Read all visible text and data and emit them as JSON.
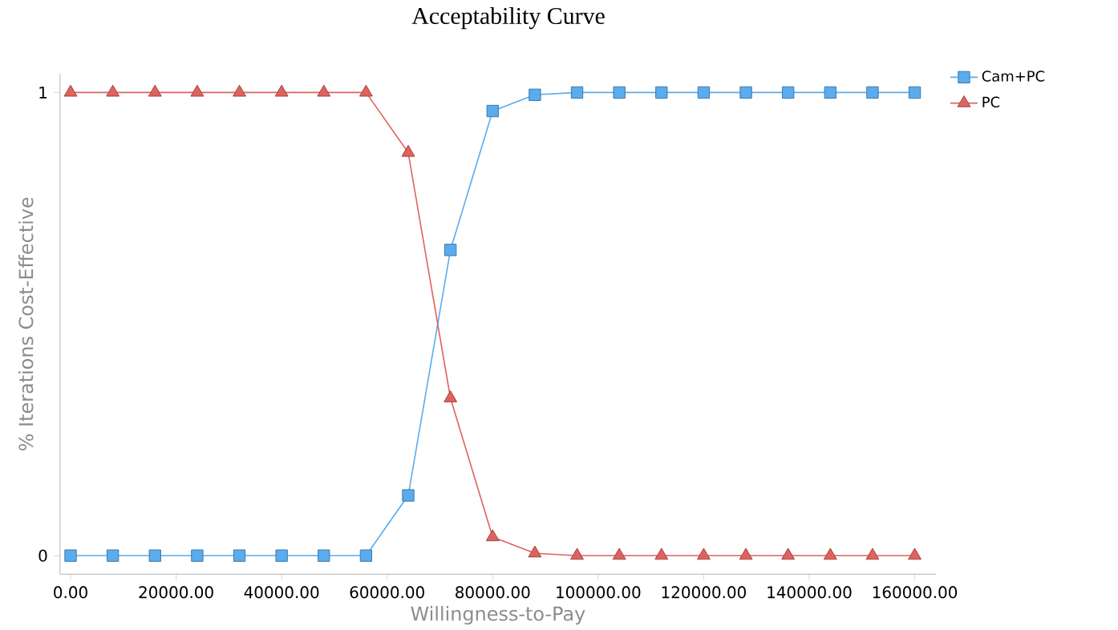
{
  "chart_data": {
    "type": "line",
    "title": "Acceptability Curve",
    "xlabel": "Willingness-to-Pay",
    "ylabel": "% Iterations Cost-Effective",
    "x": [
      0,
      8000,
      16000,
      24000,
      32000,
      40000,
      48000,
      56000,
      64000,
      72000,
      80000,
      88000,
      96000,
      104000,
      112000,
      120000,
      128000,
      136000,
      144000,
      152000,
      160000
    ],
    "series": [
      {
        "name": "Cam+PC",
        "color": "#5aacee",
        "marker": "square",
        "values": [
          0,
          0,
          0,
          0,
          0,
          0,
          0,
          0,
          0.13,
          0.66,
          0.96,
          0.995,
          1,
          1,
          1,
          1,
          1,
          1,
          1,
          1,
          1
        ]
      },
      {
        "name": "PC",
        "color": "#e0625c",
        "marker": "triangle",
        "values": [
          1,
          1,
          1,
          1,
          1,
          1,
          1,
          1,
          0.87,
          0.34,
          0.04,
          0.005,
          0,
          0,
          0,
          0,
          0,
          0,
          0,
          0,
          0
        ]
      }
    ],
    "xlim": [
      -2000,
      164000
    ],
    "ylim": [
      -0.04,
      1.04
    ],
    "xticks": [
      {
        "value": 0,
        "label": "0.00"
      },
      {
        "value": 20000,
        "label": "20000.00"
      },
      {
        "value": 40000,
        "label": "40000.00"
      },
      {
        "value": 60000,
        "label": "60000.00"
      },
      {
        "value": 80000,
        "label": "80000.00"
      },
      {
        "value": 100000,
        "label": "100000.00"
      },
      {
        "value": 120000,
        "label": "120000.00"
      },
      {
        "value": 140000,
        "label": "140000.00"
      },
      {
        "value": 160000,
        "label": "160000.00"
      }
    ],
    "yticks": [
      0,
      1
    ],
    "grid": false,
    "legend": "top right",
    "line_style": "solid"
  }
}
